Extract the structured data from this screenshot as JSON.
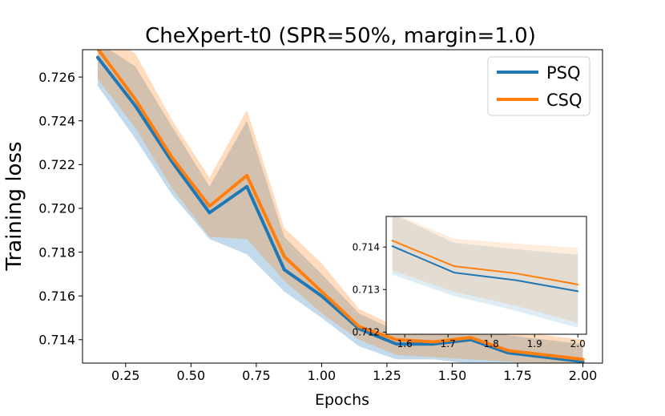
{
  "chart_data": {
    "type": "line",
    "title": "CheXpert-t0 (SPR=50%, margin=1.0)",
    "xlabel": "Epochs",
    "ylabel": "Training loss",
    "xlim": [
      0.085,
      2.075
    ],
    "ylim": [
      0.71293,
      0.72725
    ],
    "xticks": [
      "0.25",
      "0.50",
      "0.75",
      "1.00",
      "1.25",
      "1.50",
      "1.75",
      "2.00"
    ],
    "yticks": [
      "0.714",
      "0.716",
      "0.718",
      "0.720",
      "0.722",
      "0.724",
      "0.726"
    ],
    "legend_position": "top-right",
    "grid": false,
    "x": [
      0.143,
      0.286,
      0.429,
      0.571,
      0.714,
      0.857,
      1.0,
      1.143,
      1.286,
      1.429,
      1.571,
      1.714,
      1.857,
      2.0
    ],
    "series": [
      {
        "name": "PSQ",
        "color": "#1f77b4",
        "values": [
          0.7269,
          0.7247,
          0.7221,
          0.7198,
          0.721,
          0.7172,
          0.716,
          0.7145,
          0.7138,
          0.7138,
          0.714,
          0.7134,
          0.7132,
          0.713
        ],
        "lower": [
          0.7256,
          0.7232,
          0.7206,
          0.7186,
          0.7179,
          0.7162,
          0.715,
          0.7137,
          0.7131,
          0.7131,
          0.7129,
          0.7129,
          0.7129,
          0.7129
        ],
        "upper": [
          0.7276,
          0.7265,
          0.7237,
          0.721,
          0.724,
          0.7187,
          0.717,
          0.7152,
          0.7144,
          0.7145,
          0.7148,
          0.7142,
          0.714,
          0.7138
        ]
      },
      {
        "name": "CSQ",
        "color": "#ff7f0e",
        "values": [
          0.7273,
          0.725,
          0.7223,
          0.7201,
          0.7215,
          0.7178,
          0.7162,
          0.7146,
          0.714,
          0.7139,
          0.7141,
          0.7135,
          0.7133,
          0.7131
        ],
        "lower": [
          0.7259,
          0.7237,
          0.7209,
          0.7187,
          0.7186,
          0.7167,
          0.7152,
          0.714,
          0.7133,
          0.7132,
          0.7131,
          0.713,
          0.7129,
          0.7129
        ],
        "upper": [
          0.7281,
          0.7271,
          0.724,
          0.7214,
          0.7245,
          0.7191,
          0.7175,
          0.7154,
          0.7146,
          0.7147,
          0.715,
          0.7144,
          0.7142,
          0.714
        ]
      }
    ],
    "inset": {
      "xlim": [
        1.557,
        2.02
      ],
      "ylim": [
        0.71195,
        0.71472
      ],
      "xticks": [
        "1.6",
        "1.7",
        "1.8",
        "1.9",
        "2.0"
      ],
      "yticks": [
        "0.712",
        "0.713",
        "0.714"
      ],
      "x": [
        1.571,
        1.714,
        1.857,
        2.0
      ],
      "series": [
        {
          "name": "PSQ",
          "color": "#1f77b4",
          "values": [
            0.71402,
            0.7134,
            0.71322,
            0.71296
          ],
          "lower": [
            0.71335,
            0.71285,
            0.7125,
            0.7121
          ],
          "upper": [
            0.71478,
            0.7141,
            0.71395,
            0.71382
          ]
        },
        {
          "name": "CSQ",
          "color": "#ff7f0e",
          "values": [
            0.71415,
            0.71355,
            0.71338,
            0.71312
          ],
          "lower": [
            0.71345,
            0.71295,
            0.71262,
            0.71222
          ],
          "upper": [
            0.7148,
            0.7142,
            0.71408,
            0.71398
          ]
        }
      ]
    }
  }
}
